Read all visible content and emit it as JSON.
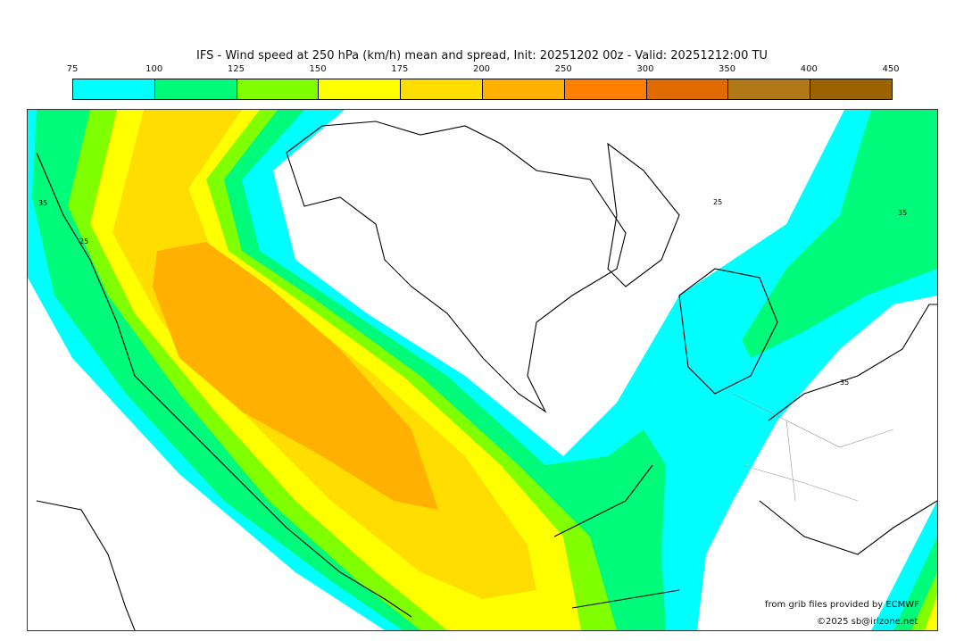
{
  "title": "IFS - Wind speed at 250 hPa (km/h) mean and spread, Init: 20251202 00z - Valid: 20251212:00 TU",
  "legend": {
    "ticks": [
      "75",
      "100",
      "125",
      "150",
      "175",
      "200",
      "250",
      "300",
      "350",
      "400",
      "450"
    ],
    "colors": [
      "#00ffff",
      "#00fa7a",
      "#80ff00",
      "#ffff00",
      "#ffdd00",
      "#ffb000",
      "#ff8000",
      "#e06a00",
      "#b07818",
      "#9a6200"
    ]
  },
  "contour_labels": [
    "35",
    "25",
    "35",
    "25",
    "35"
  ],
  "credits": {
    "source": "from grib files provided by ECMWF",
    "copyright": "©2025 sb@irizone.net"
  }
}
